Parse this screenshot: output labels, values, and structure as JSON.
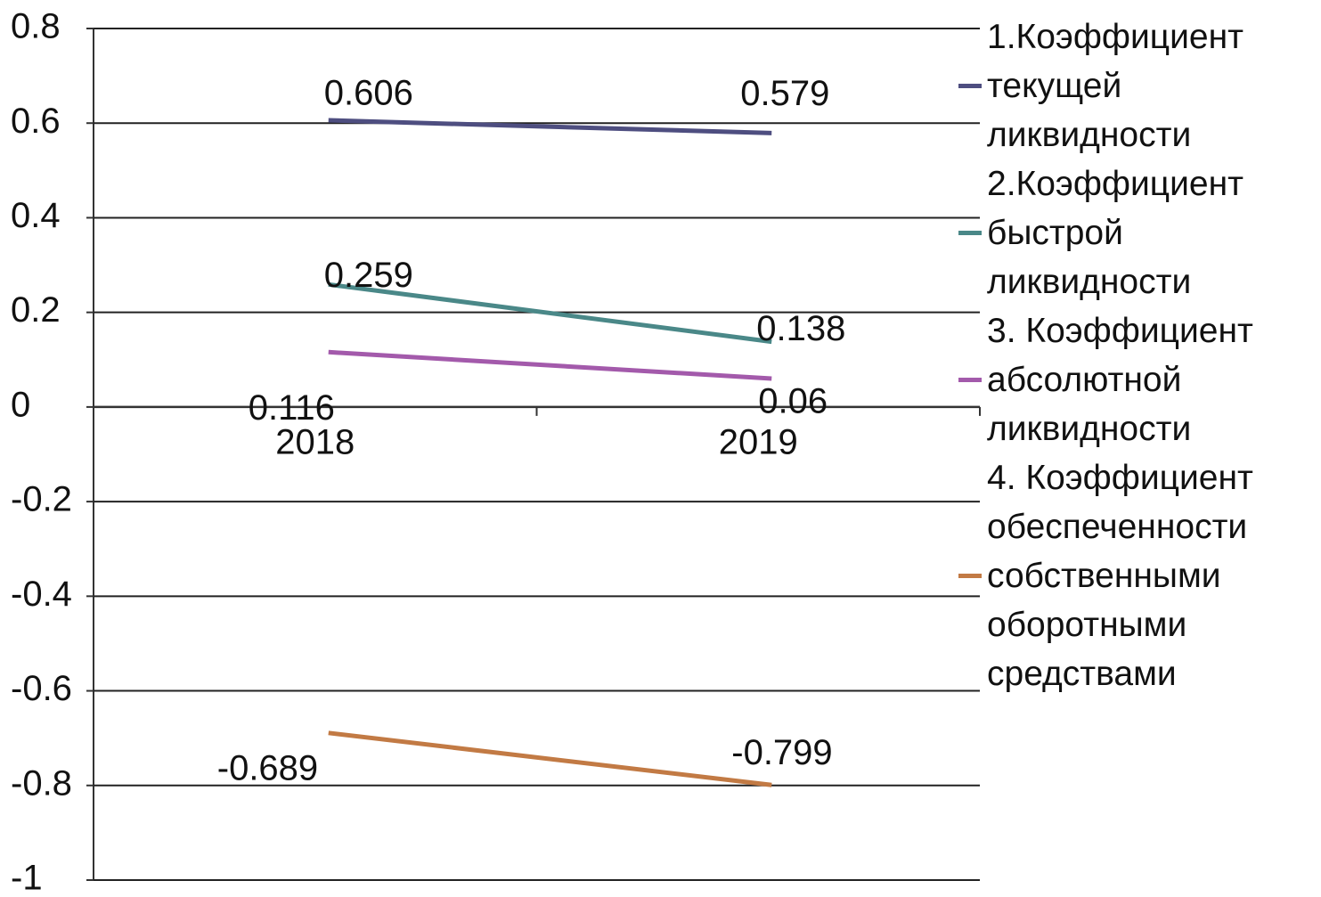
{
  "chart_data": {
    "type": "line",
    "categories": [
      "2018",
      "2019"
    ],
    "series": [
      {
        "name": "1.Коэффициент текущей ликвидности",
        "color": "#4e4e80",
        "values": [
          0.606,
          0.579
        ]
      },
      {
        "name": "2.Коэффициент быстрой ликвидности",
        "color": "#4a8888",
        "values": [
          0.259,
          0.138
        ]
      },
      {
        "name": "3. Коэффициент абсолютной ликвидности",
        "color": "#a35aab",
        "values": [
          0.116,
          0.06
        ]
      },
      {
        "name": "4. Коэффициент обеспеченности собственными оборотными средствами",
        "color": "#c27a44",
        "values": [
          -0.689,
          -0.799
        ]
      }
    ],
    "ylim": [
      -1,
      0.8
    ],
    "yticks": [
      0.8,
      0.6,
      0.4,
      0.2,
      0,
      -0.2,
      -0.4,
      -0.6,
      -0.8,
      -1
    ],
    "grid": true,
    "legend": "right"
  }
}
